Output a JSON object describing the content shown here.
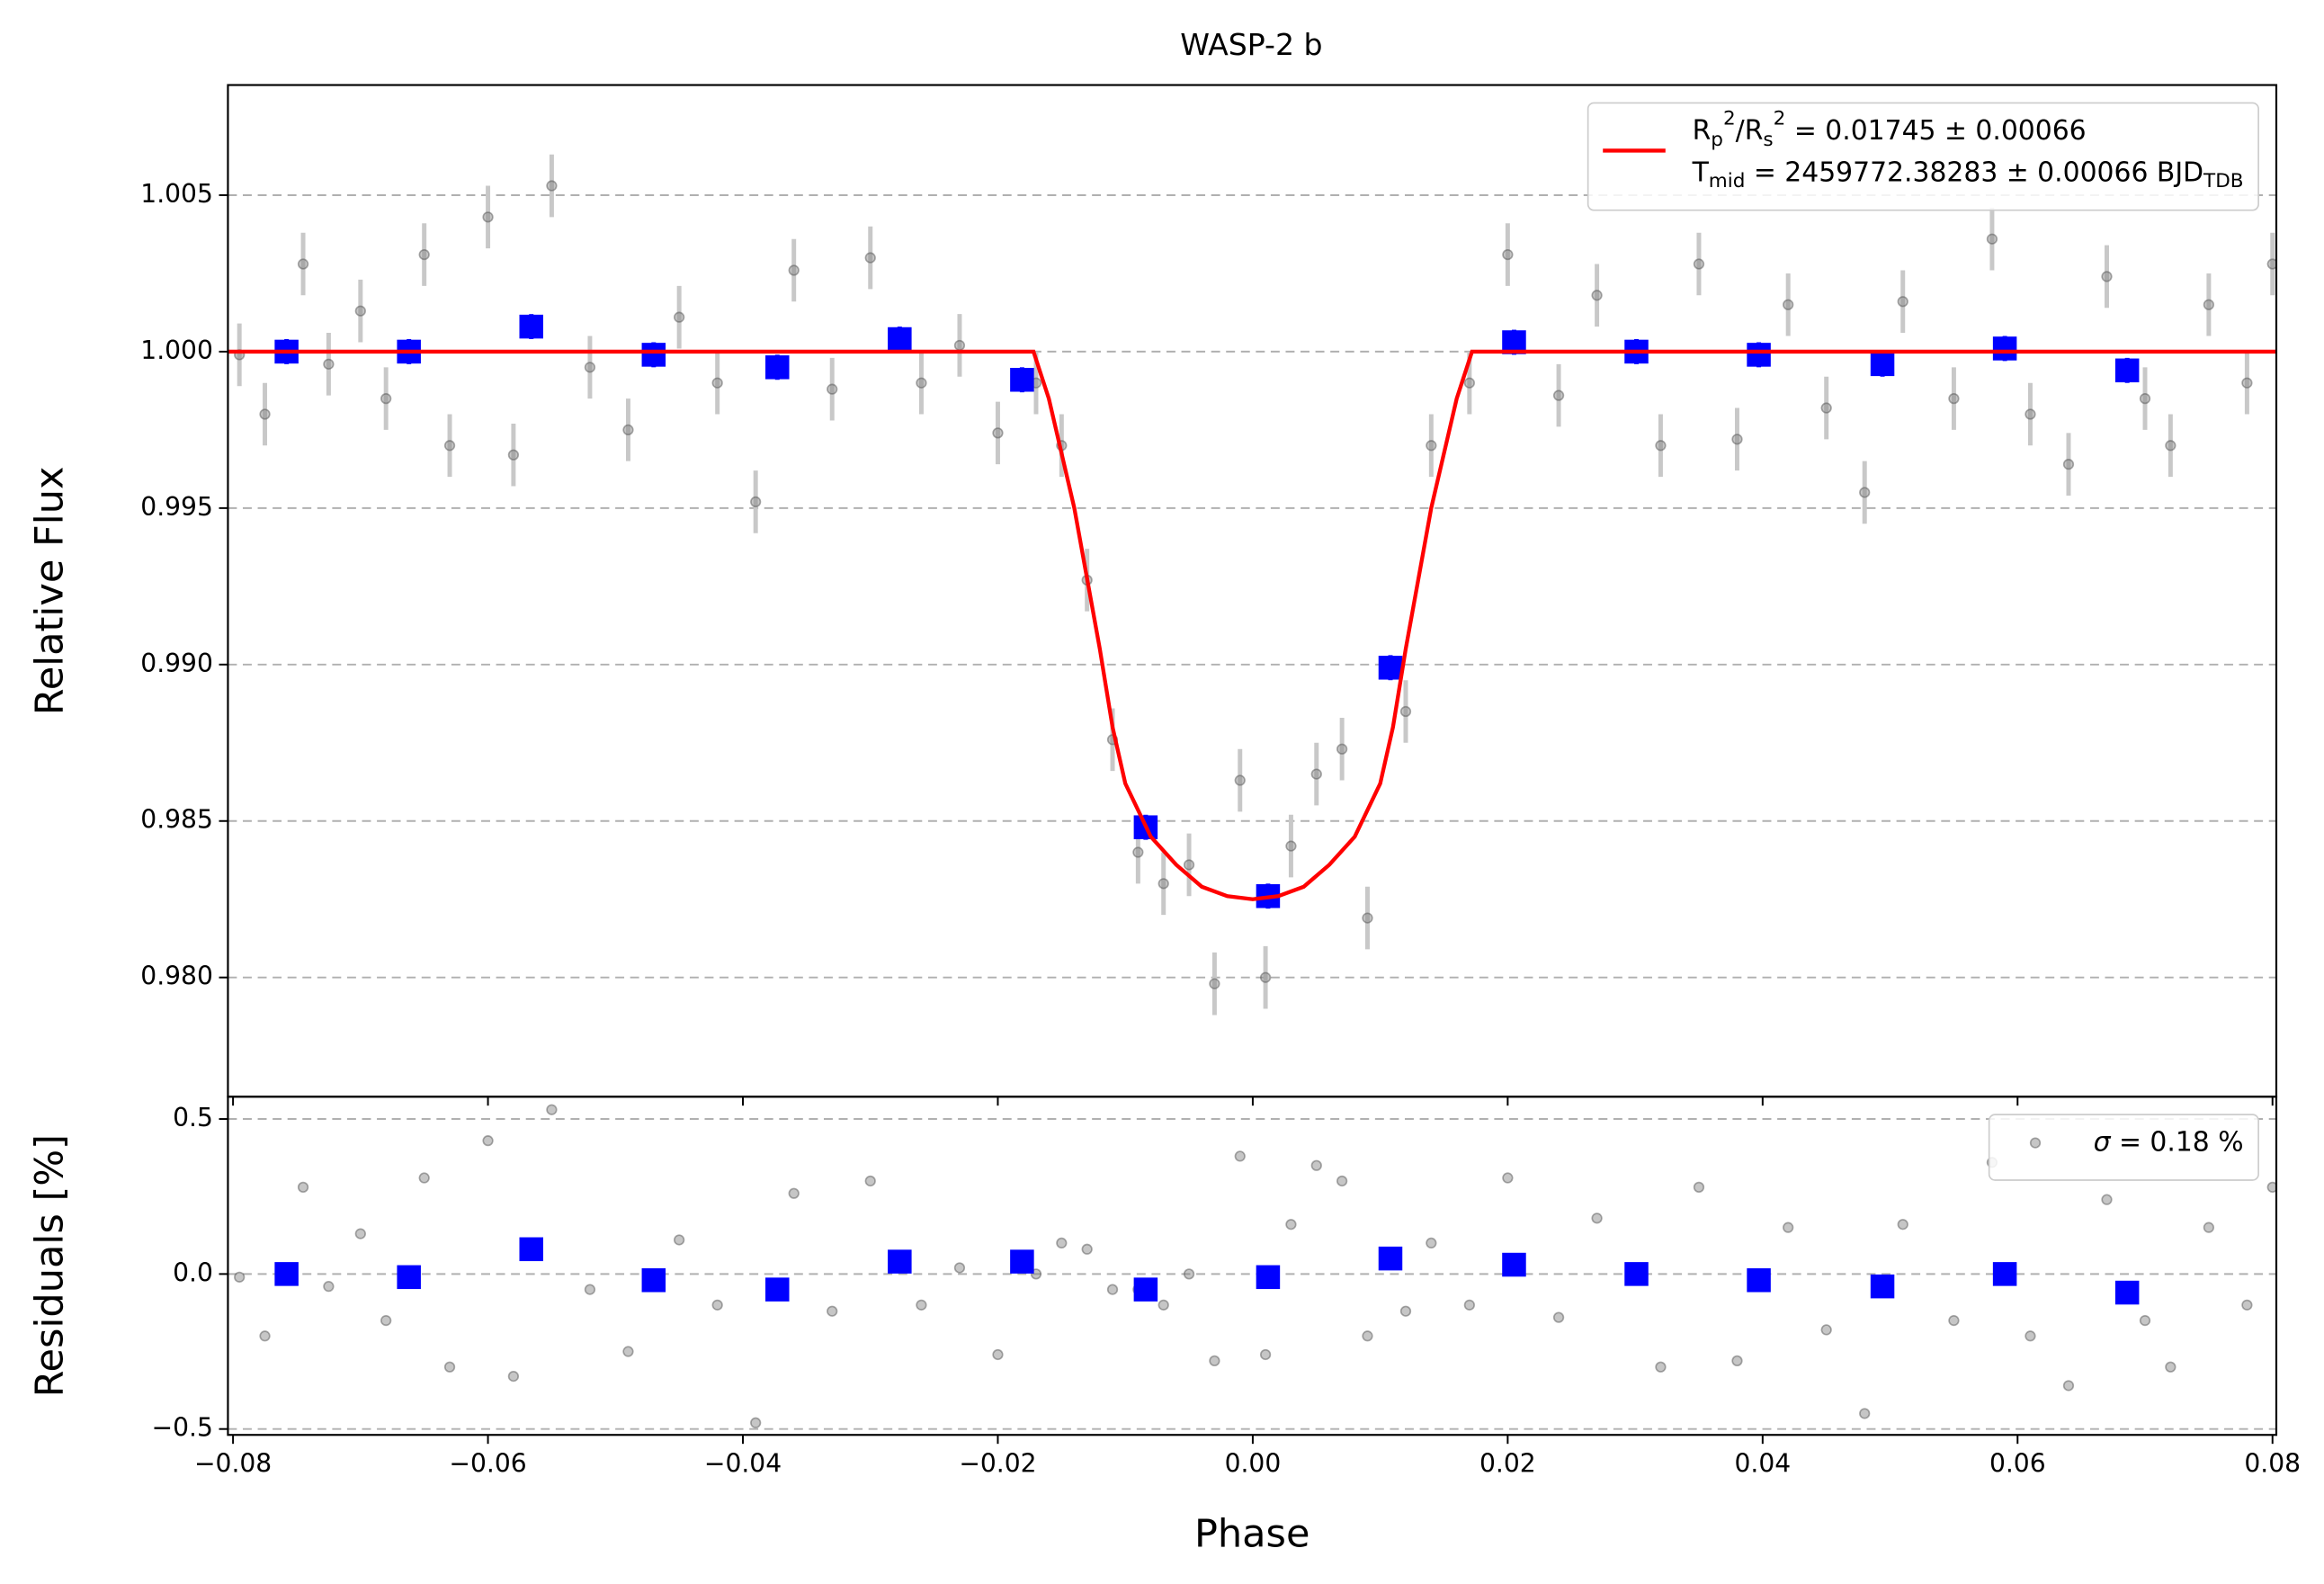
{
  "chart_data": [
    {
      "type": "scatter",
      "title": "WASP-2 b",
      "ylabel": "Relative Flux",
      "xlim": [
        -0.0804,
        0.0803
      ],
      "ylim": [
        0.97619,
        1.00852
      ],
      "xticks": [
        -0.08,
        -0.06,
        -0.04,
        -0.02,
        0,
        0.02,
        0.04,
        0.06,
        0.08
      ],
      "yticks": [
        {
          "value": 0.98,
          "label": "0.980"
        },
        {
          "value": 0.985,
          "label": "0.985"
        },
        {
          "value": 0.99,
          "label": "0.990"
        },
        {
          "value": 0.995,
          "label": "0.995"
        },
        {
          "value": 1.0,
          "label": "1.000"
        },
        {
          "value": 1.005,
          "label": "1.005"
        }
      ],
      "grid": true,
      "legend": "upper right",
      "series": [
        {
          "marker": "o",
          "color": "#808080",
          "yerr": 0.001,
          "x": [
            -0.0795,
            -0.0775,
            -0.0745,
            -0.0725,
            -0.07,
            -0.068,
            -0.065,
            -0.063,
            -0.06,
            -0.058,
            -0.055,
            -0.052,
            -0.049,
            -0.045,
            -0.042,
            -0.039,
            -0.036,
            -0.033,
            -0.03,
            -0.026,
            -0.023,
            -0.02,
            -0.017,
            -0.015,
            -0.013,
            -0.011,
            -0.009,
            -0.007,
            -0.005,
            -0.003,
            -0.001,
            0.001,
            0.003,
            0.005,
            0.007,
            0.009,
            0.012,
            0.014,
            0.017,
            0.02,
            0.024,
            0.027,
            0.032,
            0.035,
            0.038,
            0.042,
            0.045,
            0.048,
            0.051,
            0.055,
            0.058,
            0.061,
            0.064,
            0.067,
            0.07,
            0.072,
            0.075,
            0.078,
            0.08
          ],
          "values": [
            0.9999,
            0.998,
            1.0028,
            0.9996,
            1.0013,
            0.9985,
            1.0031,
            0.997,
            1.0043,
            0.9967,
            1.0053,
            0.9995,
            0.9975,
            1.0011,
            0.999,
            0.9952,
            1.0026,
            0.9988,
            1.003,
            0.999,
            1.0002,
            0.9974,
            0.999,
            0.997,
            0.9927,
            0.9876,
            0.984,
            0.983,
            0.9836,
            0.9798,
            0.9863,
            0.98,
            0.9842,
            0.9865,
            0.9873,
            0.9819,
            0.9885,
            0.997,
            0.999,
            1.0031,
            0.9986,
            1.0018,
            0.997,
            1.0028,
            0.9972,
            1.0015,
            0.9982,
            0.9955,
            1.0016,
            0.9985,
            1.0036,
            0.998,
            0.9964,
            1.0024,
            0.9985,
            0.997,
            1.0015,
            0.999,
            1.0028
          ]
        },
        {
          "marker": "s",
          "color": "#0000ff",
          "yerr": 0.0004,
          "x": [
            -0.0758,
            -0.0662,
            -0.0566,
            -0.047,
            -0.0373,
            -0.0277,
            -0.0181,
            -0.0084,
            0.0012,
            0.0108,
            0.0205,
            0.0301,
            0.0397,
            0.0494,
            0.059,
            0.0686
          ],
          "values": [
            1.0,
            1.0,
            1.0008,
            0.9999,
            0.9995,
            1.0004,
            0.9991,
            0.9848,
            0.9826,
            0.9899,
            1.0003,
            1.0,
            0.9999,
            0.9996,
            1.0001,
            0.9994
          ]
        },
        {
          "marker": "line",
          "color": "#ff0000",
          "name": [
            [
              {
                "text": "R"
              },
              {
                "text": "p",
                "shift": "sub"
              },
              {
                "text": "2",
                "shift": "sup"
              },
              {
                "text": "/R"
              },
              {
                "text": "s",
                "shift": "sub"
              },
              {
                "text": "2",
                "shift": "sup"
              },
              {
                "text": " = 0.01745 ± 0.00066"
              }
            ],
            [
              {
                "text": "T"
              },
              {
                "text": "mid",
                "shift": "sub"
              },
              {
                "text": " = 2459772.38283 ± 0.00066 BJD"
              },
              {
                "text": "TDB",
                "shift": "sub"
              }
            ]
          ],
          "x": [
            -0.0804,
            -0.0172,
            -0.016,
            -0.014,
            -0.012,
            -0.011,
            -0.01,
            -0.008,
            -0.006,
            -0.004,
            -0.002,
            0,
            0.002,
            0.004,
            0.006,
            0.008,
            0.01,
            0.011,
            0.012,
            0.014,
            0.016,
            0.0172,
            0.0803
          ],
          "values": [
            1.0,
            1.0,
            0.9985,
            0.995,
            0.9905,
            0.988,
            0.9862,
            0.9845,
            0.9836,
            0.9829,
            0.9826,
            0.9825,
            0.9826,
            0.9829,
            0.9836,
            0.9845,
            0.9862,
            0.988,
            0.9905,
            0.995,
            0.9985,
            1.0,
            1.0
          ]
        }
      ]
    },
    {
      "type": "scatter",
      "xlabel": "Phase",
      "ylabel": "Residuals [%]",
      "xlim": [
        -0.0804,
        0.0803
      ],
      "ylim": [
        -0.519,
        0.572
      ],
      "xticks": [
        {
          "value": -0.08,
          "label": "−0.08"
        },
        {
          "value": -0.06,
          "label": "−0.06"
        },
        {
          "value": -0.04,
          "label": "−0.04"
        },
        {
          "value": -0.02,
          "label": "−0.02"
        },
        {
          "value": 0,
          "label": "0.00"
        },
        {
          "value": 0.02,
          "label": "0.02"
        },
        {
          "value": 0.04,
          "label": "0.04"
        },
        {
          "value": 0.06,
          "label": "0.06"
        },
        {
          "value": 0.08,
          "label": "0.08"
        }
      ],
      "yticks": [
        {
          "value": -0.5,
          "label": "−0.5"
        },
        {
          "value": 0,
          "label": "0.0"
        },
        0.5
      ],
      "grid": true,
      "legend": "upper right",
      "series": [
        {
          "marker": "o",
          "color": "#808080",
          "name": [
            [
              {
                "text": "σ",
                "style": "italic"
              },
              {
                "text": " = 0.18 %"
              }
            ]
          ],
          "x": [
            -0.0795,
            -0.0775,
            -0.0745,
            -0.0725,
            -0.07,
            -0.068,
            -0.065,
            -0.063,
            -0.06,
            -0.058,
            -0.055,
            -0.052,
            -0.049,
            -0.045,
            -0.042,
            -0.039,
            -0.036,
            -0.033,
            -0.03,
            -0.026,
            -0.023,
            -0.02,
            -0.017,
            -0.015,
            -0.013,
            -0.011,
            -0.009,
            -0.007,
            -0.005,
            -0.003,
            -0.001,
            0.001,
            0.003,
            0.005,
            0.007,
            0.009,
            0.012,
            0.014,
            0.017,
            0.02,
            0.024,
            0.027,
            0.032,
            0.035,
            0.038,
            0.042,
            0.045,
            0.048,
            0.051,
            0.055,
            0.058,
            0.061,
            0.064,
            0.067,
            0.07,
            0.072,
            0.075,
            0.078,
            0.08
          ],
          "values": [
            -0.01,
            -0.2,
            0.28,
            -0.04,
            0.13,
            -0.15,
            0.31,
            -0.3,
            0.43,
            -0.33,
            0.53,
            -0.05,
            -0.25,
            0.11,
            -0.1,
            -0.48,
            0.26,
            -0.12,
            0.3,
            -0.1,
            0.02,
            -0.26,
            0.0,
            0.1,
            0.08,
            -0.05,
            -0.05,
            -0.1,
            0.0,
            -0.28,
            0.38,
            -0.26,
            0.16,
            0.35,
            0.3,
            -0.2,
            -0.12,
            0.1,
            -0.1,
            0.31,
            -0.14,
            0.18,
            -0.3,
            0.28,
            -0.28,
            0.15,
            -0.18,
            -0.45,
            0.16,
            -0.15,
            0.36,
            -0.2,
            -0.36,
            0.24,
            -0.15,
            -0.3,
            0.15,
            -0.1,
            0.28
          ]
        },
        {
          "marker": "s",
          "color": "#0000ff",
          "x": [
            -0.0758,
            -0.0662,
            -0.0566,
            -0.047,
            -0.0373,
            -0.0277,
            -0.0181,
            -0.0084,
            0.0012,
            0.0108,
            0.0205,
            0.0301,
            0.0397,
            0.0494,
            0.059,
            0.0686
          ],
          "values": [
            0.0,
            -0.01,
            0.08,
            -0.02,
            -0.05,
            0.04,
            0.04,
            -0.05,
            -0.01,
            0.05,
            0.03,
            0.0,
            -0.02,
            -0.04,
            0.0,
            -0.06
          ]
        }
      ]
    }
  ]
}
